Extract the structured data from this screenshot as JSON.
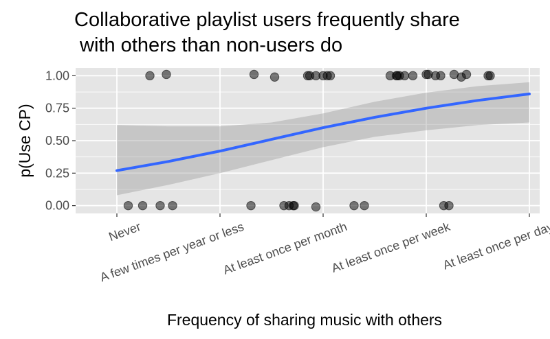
{
  "chart_data": {
    "type": "scatter",
    "title_line1": "Collaborative playlist users frequently share",
    "title_line2": " with others than non-users do",
    "xlabel": "Frequency of sharing music with others",
    "ylabel": "p(Use CP)",
    "categories": [
      "Never",
      "A few times per year or less",
      "At least once per month",
      "At least once per week",
      "At least once per day"
    ],
    "yticks": [
      0.0,
      0.25,
      0.5,
      0.75,
      1.0
    ],
    "ytick_labels": [
      "0.00",
      "0.25",
      "0.50",
      "0.75",
      "1.00"
    ],
    "ylim": [
      -0.06,
      1.06
    ],
    "xlim": [
      0.6,
      5.1
    ],
    "grid": true,
    "points": [
      {
        "x": 1.32,
        "y": 1.0
      },
      {
        "x": 1.48,
        "y": 1.01
      },
      {
        "x": 2.33,
        "y": 1.01
      },
      {
        "x": 2.53,
        "y": 0.99
      },
      {
        "x": 2.85,
        "y": 1.0
      },
      {
        "x": 2.87,
        "y": 1.0
      },
      {
        "x": 2.93,
        "y": 1.0
      },
      {
        "x": 3.0,
        "y": 1.0
      },
      {
        "x": 3.04,
        "y": 1.0
      },
      {
        "x": 3.07,
        "y": 1.0
      },
      {
        "x": 3.65,
        "y": 1.0
      },
      {
        "x": 3.71,
        "y": 1.0
      },
      {
        "x": 3.72,
        "y": 1.0
      },
      {
        "x": 3.74,
        "y": 1.0
      },
      {
        "x": 3.79,
        "y": 1.0
      },
      {
        "x": 3.87,
        "y": 1.0
      },
      {
        "x": 4.0,
        "y": 1.01
      },
      {
        "x": 4.02,
        "y": 1.01
      },
      {
        "x": 4.09,
        "y": 1.0
      },
      {
        "x": 4.14,
        "y": 1.0
      },
      {
        "x": 4.27,
        "y": 1.01
      },
      {
        "x": 4.34,
        "y": 0.99
      },
      {
        "x": 4.39,
        "y": 1.01
      },
      {
        "x": 4.6,
        "y": 1.0
      },
      {
        "x": 4.62,
        "y": 1.0
      },
      {
        "x": 1.11,
        "y": 0.0
      },
      {
        "x": 1.25,
        "y": 0.0
      },
      {
        "x": 1.42,
        "y": 0.0
      },
      {
        "x": 1.54,
        "y": 0.0
      },
      {
        "x": 2.3,
        "y": 0.0
      },
      {
        "x": 2.62,
        "y": 0.0
      },
      {
        "x": 2.67,
        "y": 0.0
      },
      {
        "x": 2.71,
        "y": 0.0
      },
      {
        "x": 2.72,
        "y": 0.0
      },
      {
        "x": 2.93,
        "y": -0.01
      },
      {
        "x": 3.3,
        "y": 0.0
      },
      {
        "x": 3.4,
        "y": 0.0
      },
      {
        "x": 4.17,
        "y": 0.0
      },
      {
        "x": 4.22,
        "y": 0.0
      }
    ],
    "fit_line": {
      "x": [
        1,
        1.5,
        2,
        2.5,
        3,
        3.5,
        4,
        4.5,
        5
      ],
      "y": [
        0.27,
        0.34,
        0.42,
        0.51,
        0.6,
        0.68,
        0.75,
        0.81,
        0.86
      ]
    },
    "confidence_band": {
      "x": [
        1,
        1.5,
        2,
        2.5,
        3,
        3.5,
        4,
        4.5,
        5
      ],
      "lower": [
        0.08,
        0.16,
        0.25,
        0.35,
        0.45,
        0.53,
        0.58,
        0.62,
        0.64
      ],
      "upper": [
        0.62,
        0.61,
        0.61,
        0.64,
        0.71,
        0.8,
        0.87,
        0.92,
        0.95
      ]
    },
    "colors": {
      "panel": "#e5e5e5",
      "grid": "#ffffff",
      "point": "#000000",
      "line": "#3366ff",
      "band": "#999999"
    }
  }
}
